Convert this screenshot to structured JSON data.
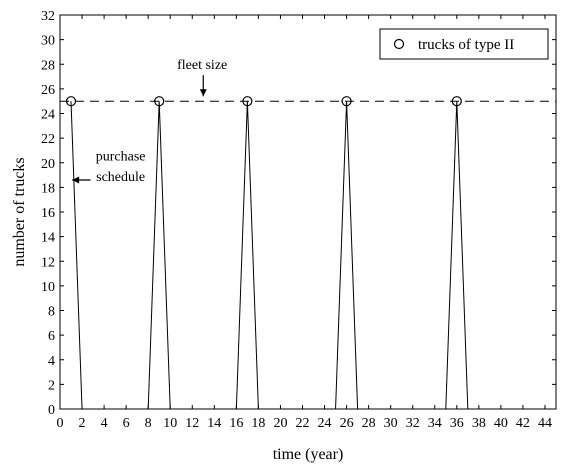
{
  "chart_data": {
    "type": "line",
    "title": "",
    "xlabel": "time (year)",
    "ylabel": "number of trucks",
    "xlim": [
      0,
      45
    ],
    "ylim": [
      0,
      32
    ],
    "xticks": [
      0,
      2,
      4,
      6,
      8,
      10,
      12,
      14,
      16,
      18,
      20,
      22,
      24,
      26,
      28,
      30,
      32,
      34,
      36,
      38,
      40,
      42,
      44
    ],
    "yticks": [
      0,
      2,
      4,
      6,
      8,
      10,
      12,
      14,
      16,
      18,
      20,
      22,
      24,
      26,
      28,
      30,
      32
    ],
    "grid": false,
    "legend_position": "top-right",
    "series": [
      {
        "role": "purchase-schedule",
        "style": "solid",
        "color": "#000000",
        "x": [
          1,
          2,
          8,
          9,
          10,
          16,
          17,
          18,
          25,
          26,
          27,
          35,
          36,
          37
        ],
        "y": [
          25,
          0,
          0,
          25,
          0,
          0,
          25,
          0,
          0,
          25,
          0,
          0,
          25,
          0
        ]
      },
      {
        "role": "fleet-size",
        "style": "dashed",
        "color": "#000000",
        "x": [
          0,
          45
        ],
        "y": [
          25,
          25
        ]
      },
      {
        "name": "trucks of type II",
        "style": "markers",
        "marker": "circle-open",
        "color": "#000000",
        "x": [
          1,
          9,
          17,
          26,
          36
        ],
        "y": [
          25,
          25,
          25,
          25,
          25
        ]
      }
    ],
    "legend": [
      "trucks of type II"
    ],
    "annotations": [
      {
        "text": "fleet size",
        "x": 12.9,
        "y": 27.6,
        "arrow_to": [
          13,
          25.4
        ]
      },
      {
        "text": "purchase",
        "x": 5.5,
        "y": 20.2
      },
      {
        "text": "schedule",
        "x": 5.5,
        "y": 18.5,
        "arrow_to": [
          1.1,
          18.6
        ]
      }
    ]
  }
}
